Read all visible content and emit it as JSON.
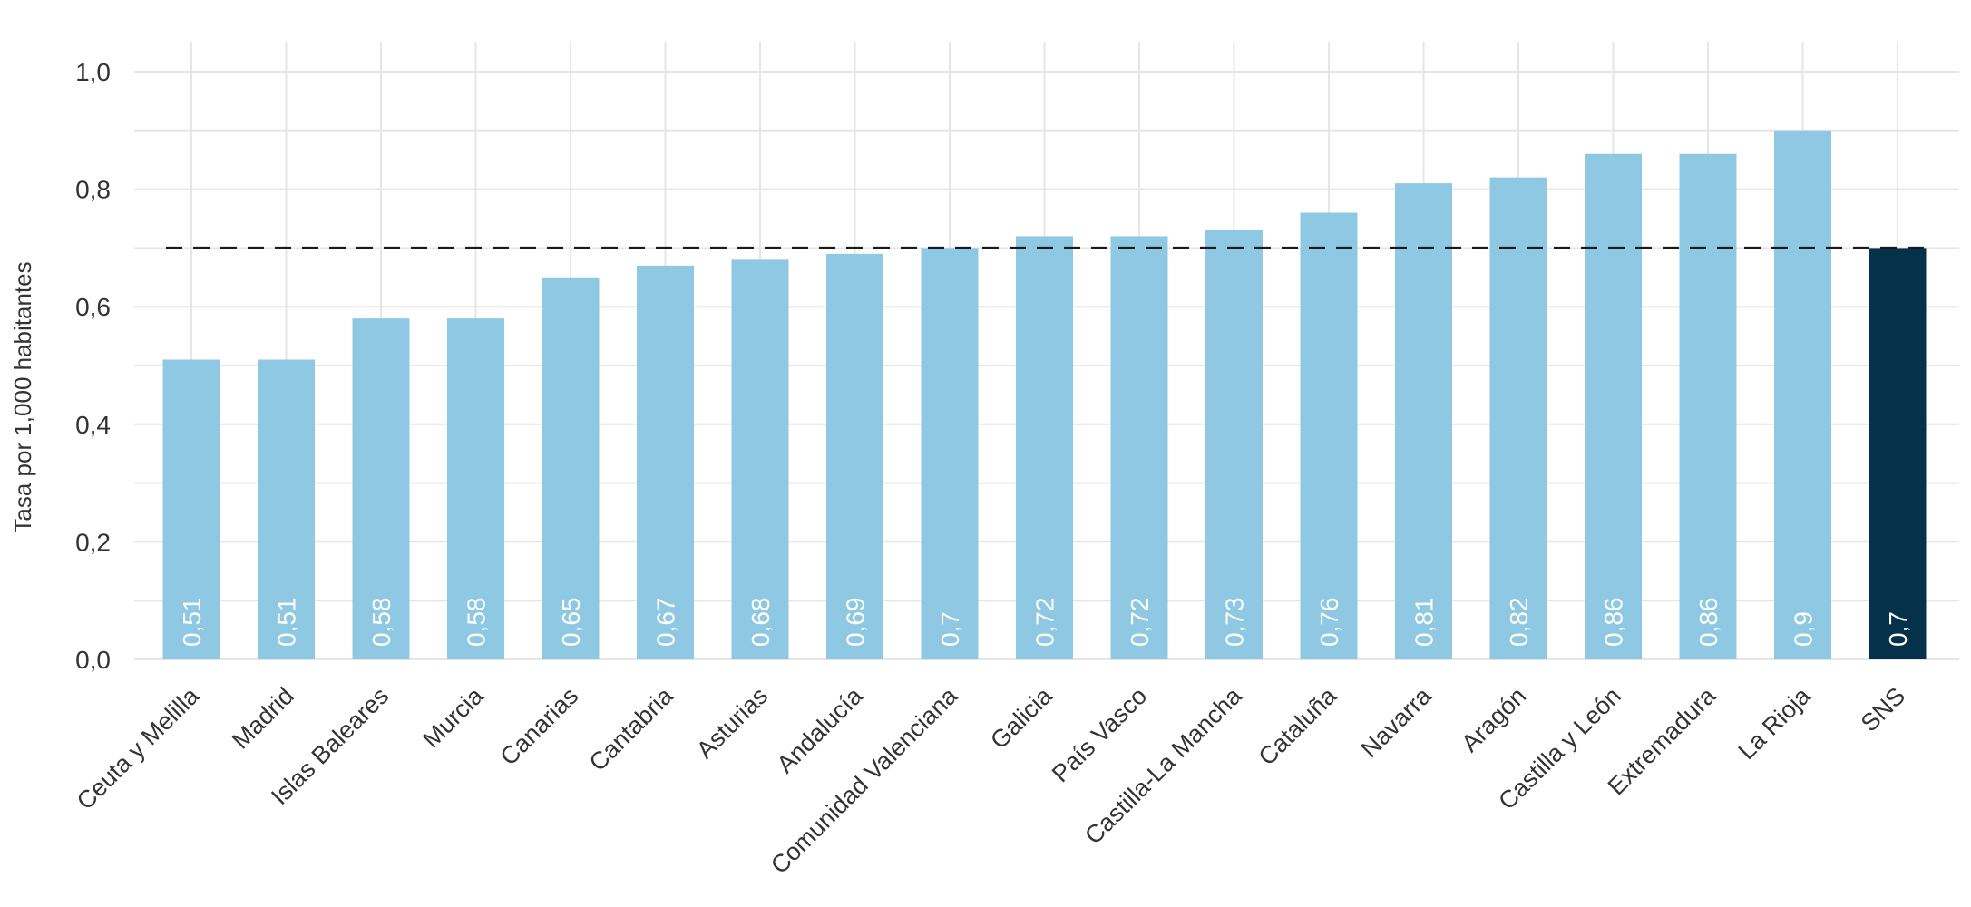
{
  "chart_data": {
    "type": "bar",
    "categories": [
      "Ceuta y Melilla",
      "Madrid",
      "Islas Baleares",
      "Murcia",
      "Canarias",
      "Cantabria",
      "Asturias",
      "Andalucía",
      "Comunidad Valenciana",
      "Galicia",
      "País Vasco",
      "Castilla-La Mancha",
      "Cataluña",
      "Navarra",
      "Aragón",
      "Castilla y León",
      "Extremadura",
      "La Rioja",
      "SNS"
    ],
    "values": [
      0.51,
      0.51,
      0.58,
      0.58,
      0.65,
      0.67,
      0.68,
      0.69,
      0.7,
      0.72,
      0.72,
      0.73,
      0.76,
      0.81,
      0.82,
      0.86,
      0.86,
      0.9,
      0.7
    ],
    "value_labels": [
      "0,51",
      "0,51",
      "0,58",
      "0,58",
      "0,65",
      "0,67",
      "0,68",
      "0,69",
      "0,7",
      "0,72",
      "0,72",
      "0,73",
      "0,76",
      "0,81",
      "0,82",
      "0,86",
      "0,86",
      "0,9",
      "0,7"
    ],
    "ylabel": "Tasa por 1,000 habitantes",
    "xlabel": "",
    "ylim": [
      0,
      1.0
    ],
    "yticks": [
      0,
      0.2,
      0.4,
      0.6,
      0.8,
      1.0
    ],
    "ytick_labels": [
      "0,0",
      "0,2",
      "0,4",
      "0,6",
      "0,8",
      "1,0"
    ],
    "reference_line": {
      "value": 0.7,
      "style": "dashed",
      "color": "#1a1a1a"
    },
    "colors": {
      "bar": "#8ec8e3",
      "highlight": "#05314a",
      "grid": "#e6e6e6"
    },
    "highlight_category": "SNS",
    "grid": true,
    "legend": "none"
  }
}
